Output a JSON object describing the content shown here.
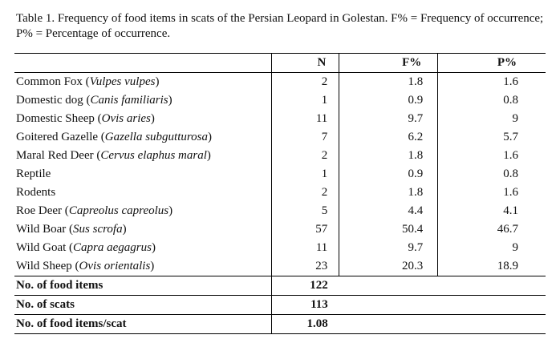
{
  "caption": "Table 1. Frequency of food items in scats of the Persian Leopard in Golestan. F% = Frequency of occurrence; P% = Percentage of occurrence.",
  "headers": {
    "name": "",
    "n": "N",
    "f": "F%",
    "p": "P%"
  },
  "rows": [
    {
      "common": "Common Fox (",
      "sci": "Vulpes vulpes",
      "close": ")",
      "n": "2",
      "f": "1.8",
      "p": "1.6"
    },
    {
      "common": "Domestic dog (",
      "sci": "Canis familiaris",
      "close": ")",
      "n": "1",
      "f": "0.9",
      "p": "0.8"
    },
    {
      "common": "Domestic Sheep (",
      "sci": "Ovis aries",
      "close": ")",
      "n": "11",
      "f": "9.7",
      "p": "9"
    },
    {
      "common": "Goitered Gazelle (",
      "sci": "Gazella subgutturosa",
      "close": ")",
      "n": "7",
      "f": "6.2",
      "p": "5.7"
    },
    {
      "common": "Maral Red Deer (",
      "sci": "Cervus elaphus maral",
      "close": ")",
      "n": "2",
      "f": "1.8",
      "p": "1.6"
    },
    {
      "common": "Reptile",
      "sci": "",
      "close": "",
      "n": "1",
      "f": "0.9",
      "p": "0.8"
    },
    {
      "common": "Rodents",
      "sci": "",
      "close": "",
      "n": "2",
      "f": "1.8",
      "p": "1.6"
    },
    {
      "common": "Roe Deer (",
      "sci": "Capreolus capreolus",
      "close": ")",
      "n": "5",
      "f": "4.4",
      "p": "4.1"
    },
    {
      "common": "Wild Boar (",
      "sci": "Sus scrofa",
      "close": ")",
      "n": "57",
      "f": "50.4",
      "p": "46.7"
    },
    {
      "common": "Wild Goat (",
      "sci": "Capra aegagrus",
      "close": ")",
      "n": "11",
      "f": "9.7",
      "p": "9"
    },
    {
      "common": "Wild Sheep (",
      "sci": "Ovis orientalis",
      "close": ")",
      "n": "23",
      "f": "20.3",
      "p": "18.9"
    }
  ],
  "summary": [
    {
      "label": "No. of food items",
      "value": "122"
    },
    {
      "label": "No. of scats",
      "value": "113"
    },
    {
      "label": "No. of food items/scat",
      "value": "1.08"
    }
  ]
}
